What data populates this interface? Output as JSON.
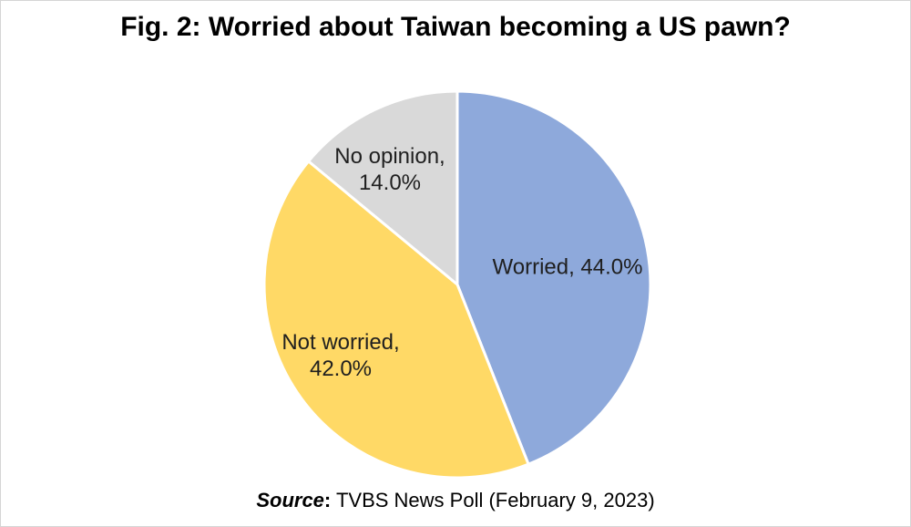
{
  "figure": {
    "title": "Fig. 2: Worried about Taiwan becoming a US pawn?",
    "source_prefix": "Source",
    "source_colon": ":",
    "source_text": " TVBS News Poll (February 9, 2023)"
  },
  "chart_data": {
    "type": "pie",
    "title": "Fig. 2: Worried about Taiwan becoming a US pawn?",
    "units": "%",
    "total": 100,
    "legend": "none",
    "label_style": "category name and percentage inside slices",
    "start_angle_deg": 0,
    "direction": "clockwise from 12 o'clock",
    "separator_color": "#ffffff",
    "slices": [
      {
        "label": "Worried",
        "value": 44.0,
        "color": "#8EA9DB",
        "label_lines": [
          "Worried, 44.0%"
        ]
      },
      {
        "label": "Not worried",
        "value": 42.0,
        "color": "#FFD966",
        "label_lines": [
          "Not worried,",
          "42.0%"
        ]
      },
      {
        "label": "No opinion",
        "value": 14.0,
        "color": "#D9D9D9",
        "label_lines": [
          "No opinion,",
          "14.0%"
        ]
      }
    ],
    "source": "Source: TVBS News Poll (February 9, 2023)"
  }
}
